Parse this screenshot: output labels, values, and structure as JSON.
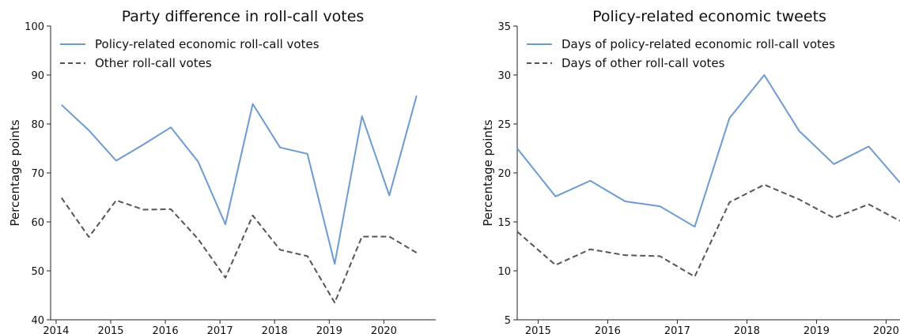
{
  "chart_data": [
    {
      "type": "line",
      "title": "Party difference in roll-call votes",
      "xlabel": "",
      "ylabel": "Percentage points",
      "xlim": [
        2013.9,
        2020.95
      ],
      "ylim": [
        40,
        100
      ],
      "xticks": [
        "2014",
        "2015",
        "2016",
        "2017",
        "2018",
        "2019",
        "2020"
      ],
      "yticks": [
        "40",
        "50",
        "60",
        "70",
        "80",
        "90",
        "100"
      ],
      "legend_position": "top-left",
      "grid": false,
      "x": [
        2014.1,
        2014.6,
        2015.1,
        2015.6,
        2016.1,
        2016.6,
        2017.1,
        2017.6,
        2018.1,
        2018.6,
        2019.1,
        2019.6,
        2020.1,
        2020.6
      ],
      "series": [
        {
          "name": "Policy-related economic roll-call votes",
          "color": "#6b9bd1",
          "style": "solid",
          "values": [
            83.9,
            78.7,
            72.5,
            75.8,
            79.3,
            72.3,
            59.5,
            84.1,
            75.2,
            73.9,
            51.4,
            81.6,
            65.4,
            85.8
          ]
        },
        {
          "name": "Other roll-call votes",
          "color": "#555555",
          "style": "dashed",
          "values": [
            64.9,
            56.9,
            64.4,
            62.5,
            62.6,
            56.5,
            48.6,
            61.3,
            54.3,
            53.0,
            43.5,
            57.0,
            57.0,
            53.7
          ]
        }
      ]
    },
    {
      "type": "line",
      "title": "Policy-related economic tweets",
      "xlabel": "",
      "ylabel": "Percentage points",
      "xlim": [
        2014.7,
        2020.2
      ],
      "ylim": [
        5,
        35
      ],
      "xticks": [
        "2015",
        "2016",
        "2017",
        "2018",
        "2019",
        "2020"
      ],
      "yticks": [
        "5",
        "10",
        "15",
        "20",
        "25",
        "30",
        "35"
      ],
      "legend_position": "top-left",
      "grid": false,
      "x": [
        2014.7,
        2015.25,
        2015.75,
        2016.25,
        2016.75,
        2017.25,
        2017.75,
        2018.25,
        2018.75,
        2019.25,
        2019.75,
        2020.2
      ],
      "series": [
        {
          "name": "Days of policy-related economic roll-call votes",
          "color": "#6b9bd1",
          "style": "solid",
          "values": [
            22.5,
            17.6,
            19.2,
            17.1,
            16.6,
            14.5,
            25.6,
            30.0,
            24.3,
            20.9,
            22.7,
            19.0
          ]
        },
        {
          "name": "Days of other roll-call votes",
          "color": "#555555",
          "style": "dashed",
          "values": [
            14.0,
            10.6,
            12.2,
            11.6,
            11.5,
            9.4,
            17.0,
            18.8,
            17.3,
            15.4,
            16.8,
            15.1
          ]
        }
      ]
    }
  ]
}
